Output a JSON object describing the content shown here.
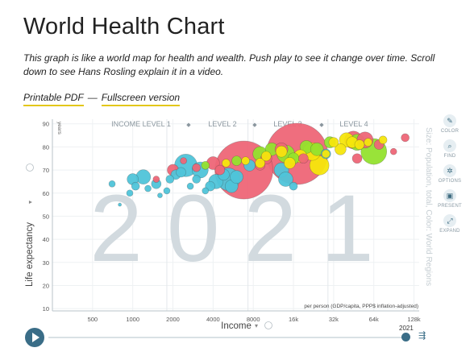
{
  "page": {
    "title": "World Health Chart",
    "description": "This graph is like a world map for health and wealth. Push play to see it change over time. Scroll down to see Hans Rosling explain it in a video.",
    "links": {
      "pdf": "Printable PDF",
      "separator": "—",
      "fullscreen": "Fullscreen version"
    }
  },
  "toolbar": [
    {
      "name": "color",
      "label": "COLOR",
      "icon": "brush-icon",
      "glyph": "✎"
    },
    {
      "name": "find",
      "label": "FIND",
      "icon": "search-icon",
      "glyph": "⌕"
    },
    {
      "name": "options",
      "label": "OPTIONS",
      "icon": "gear-icon",
      "glyph": "✲"
    },
    {
      "name": "present",
      "label": "PRESENT",
      "icon": "present-icon",
      "glyph": "▣"
    },
    {
      "name": "expand",
      "label": "EXPAND",
      "icon": "expand-icon",
      "glyph": "⤢"
    }
  ],
  "timeslider": {
    "year": "2021",
    "play_icon": "play-icon",
    "speed_icon": "speed-icon",
    "speed_glyph": "⇶"
  },
  "chart_data": {
    "type": "scatter",
    "year_watermark": "2021",
    "xlabel": "Income",
    "ylabel": "Life expectancy",
    "x_scale": "log",
    "xlim": [
      250,
      140000
    ],
    "ylim": [
      9,
      92
    ],
    "x_ticks": [
      500,
      1000,
      2000,
      4000,
      8000,
      16000,
      32000,
      64000,
      128000
    ],
    "x_tick_labels": [
      "500",
      "1000",
      "2000",
      "4000",
      "8000",
      "16k",
      "32k",
      "64k",
      "128k"
    ],
    "y_ticks": [
      10,
      20,
      30,
      40,
      50,
      60,
      70,
      80,
      90
    ],
    "y_unit": "years",
    "x_unit_note": "per person (GDP/capita, PPP$ inflation-adjusted)",
    "size_note": "Size: Population, total, Color: World Regions",
    "income_levels": [
      "INCOME LEVEL 1",
      "LEVEL 2",
      "LEVEL 3",
      "LEVEL 4"
    ],
    "income_level_separator": "◆",
    "grid": true,
    "colors": {
      "africa": "#4fc4d9",
      "americas": "#93e22e",
      "asia": "#ee6677",
      "europe": "#f5e60c"
    },
    "series": [
      {
        "region": "africa",
        "points": [
          [
            700,
            64,
            4
          ],
          [
            800,
            55,
            2
          ],
          [
            950,
            60,
            4
          ],
          [
            1000,
            66,
            7
          ],
          [
            1050,
            63,
            5
          ],
          [
            1200,
            67,
            9
          ],
          [
            1300,
            62,
            4
          ],
          [
            1500,
            64,
            6
          ],
          [
            1600,
            59,
            3
          ],
          [
            1800,
            61,
            4
          ],
          [
            1900,
            66,
            5
          ],
          [
            2100,
            68,
            6
          ],
          [
            2300,
            69,
            6
          ],
          [
            2500,
            72,
            14
          ],
          [
            2700,
            63,
            4
          ],
          [
            3000,
            66,
            5
          ],
          [
            3200,
            70,
            10
          ],
          [
            3500,
            61,
            4
          ],
          [
            3800,
            63,
            6
          ],
          [
            4200,
            65,
            9
          ],
          [
            4800,
            68,
            7
          ],
          [
            5200,
            66,
            14
          ],
          [
            5500,
            63,
            8
          ],
          [
            6000,
            67,
            8
          ],
          [
            7500,
            72,
            7
          ],
          [
            13000,
            70,
            9
          ],
          [
            14000,
            66,
            9
          ],
          [
            16000,
            63,
            5
          ],
          [
            28000,
            77,
            6
          ]
        ]
      },
      {
        "region": "americas",
        "points": [
          [
            3500,
            72,
            5
          ],
          [
            6000,
            74,
            6
          ],
          [
            9000,
            77,
            9
          ],
          [
            11000,
            79,
            8
          ],
          [
            14000,
            77,
            11
          ],
          [
            16000,
            75,
            7
          ],
          [
            20000,
            80,
            8
          ],
          [
            24000,
            79,
            8
          ],
          [
            30000,
            82,
            7
          ],
          [
            48000,
            82,
            10
          ],
          [
            64000,
            78,
            16
          ]
        ]
      },
      {
        "region": "asia",
        "points": [
          [
            1500,
            66,
            4
          ],
          [
            2000,
            70,
            7
          ],
          [
            2400,
            74,
            4
          ],
          [
            3000,
            71,
            5
          ],
          [
            4000,
            73,
            8
          ],
          [
            4500,
            70,
            6
          ],
          [
            6800,
            70,
            36
          ],
          [
            9000,
            72,
            6
          ],
          [
            10000,
            75,
            7
          ],
          [
            13000,
            79,
            8
          ],
          [
            17000,
            77,
            38
          ],
          [
            19000,
            75,
            6
          ],
          [
            45000,
            83,
            11
          ],
          [
            48000,
            75,
            6
          ],
          [
            55000,
            83,
            10
          ],
          [
            70000,
            81,
            6
          ],
          [
            90000,
            78,
            4
          ],
          [
            110000,
            84,
            5
          ]
        ]
      },
      {
        "region": "europe",
        "points": [
          [
            5000,
            73,
            5
          ],
          [
            7000,
            74,
            5
          ],
          [
            9000,
            73,
            6
          ],
          [
            10000,
            76,
            6
          ],
          [
            13000,
            78,
            7
          ],
          [
            15000,
            73,
            7
          ],
          [
            18000,
            76,
            8
          ],
          [
            22000,
            78,
            11
          ],
          [
            25000,
            72,
            12
          ],
          [
            28000,
            77,
            5
          ],
          [
            32000,
            82,
            6
          ],
          [
            36000,
            79,
            7
          ],
          [
            40000,
            83,
            9
          ],
          [
            44000,
            82,
            7
          ],
          [
            50000,
            81,
            6
          ],
          [
            58000,
            82,
            5
          ],
          [
            75000,
            83,
            5
          ]
        ]
      }
    ]
  }
}
